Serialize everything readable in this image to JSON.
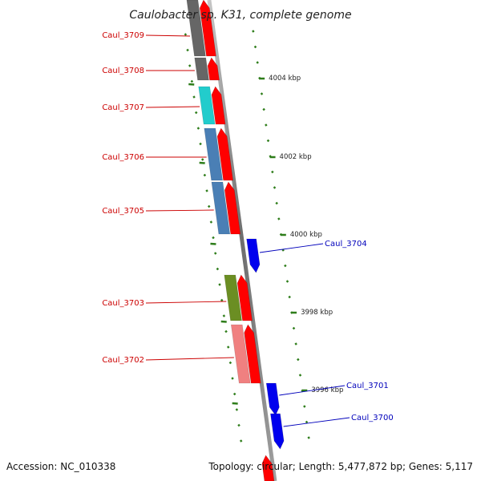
{
  "title": "Caulobacter sp. K31, complete genome",
  "accession_text": "Accession: NC_010338",
  "topology_text": "Topology: circular; Length: 5,477,872 bp; Genes: 5,117",
  "colors": {
    "backbone": "#8a8a8a",
    "tick": "#2e7d1a",
    "label_left": "#cc0000",
    "label_right": "#0000bb",
    "cds": "#ff0000",
    "cds_reverse": "#0000ee"
  },
  "kbp_labels": [
    "4004 kbp",
    "4002 kbp",
    "4000 kbp",
    "3998 kbp",
    "3996 kbp"
  ],
  "genes": [
    {
      "name": "Caul_3709",
      "cog_color": "#666666",
      "strand": "+"
    },
    {
      "name": "Caul_3708",
      "cog_color": "#666666",
      "strand": "+"
    },
    {
      "name": "Caul_3707",
      "cog_color": "#22cccc",
      "strand": "+"
    },
    {
      "name": "Caul_3706",
      "cog_color": "#4a7fb5",
      "strand": "+"
    },
    {
      "name": "Caul_3705",
      "cog_color": "#4a7fb5",
      "strand": "+"
    },
    {
      "name": "Caul_3704",
      "cog_color": "",
      "strand": "-"
    },
    {
      "name": "Caul_3703",
      "cog_color": "#6b8e23",
      "strand": "+"
    },
    {
      "name": "Caul_3702",
      "cog_color": "#f08080",
      "strand": "+"
    },
    {
      "name": "Caul_3701",
      "cog_color": "",
      "strand": "-"
    },
    {
      "name": "Caul_3700",
      "cog_color": "",
      "strand": "-"
    }
  ]
}
